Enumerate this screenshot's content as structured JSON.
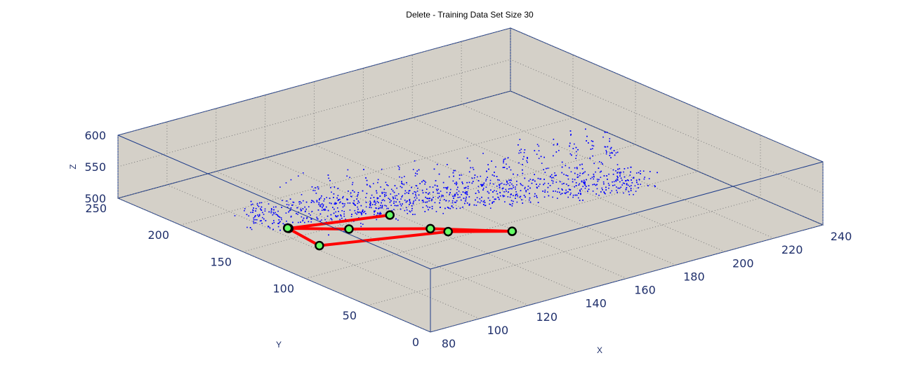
{
  "chart_data": {
    "type": "scatter",
    "projection": "3d",
    "title": "Delete - Training Data Set Size 30",
    "xlabel": "X",
    "ylabel": "Y",
    "zlabel": "Z",
    "xlim": [
      80,
      240
    ],
    "ylim": [
      0,
      250
    ],
    "zlim": [
      500,
      600
    ],
    "x_ticks": [
      "80",
      "100",
      "120",
      "140",
      "160",
      "180",
      "200",
      "220",
      "240"
    ],
    "y_ticks": [
      "0",
      "50",
      "100",
      "150",
      "200",
      "250"
    ],
    "z_ticks": [
      "500",
      "550",
      "600"
    ],
    "grid": true,
    "background_color": "#d4d0c8",
    "series": [
      {
        "kind": "point-cloud",
        "color": "#0000ff",
        "marker": "dot",
        "approx_point_count": 1800
      },
      {
        "kind": "trajectory",
        "color": "#ff0000",
        "marker_edge": "#000000",
        "marker_face": "#66ff66",
        "points_xy": [
          [
            137.9,
            146.1
          ],
          [
            105.0,
            162.4
          ],
          [
            119.6,
            142.9
          ],
          [
            140.1,
            118.0
          ],
          [
            158.9,
            89.5
          ],
          [
            142.8,
            109.1
          ],
          [
            102.6,
            133.2
          ],
          [
            104.9,
            163.1
          ]
        ]
      }
    ]
  }
}
